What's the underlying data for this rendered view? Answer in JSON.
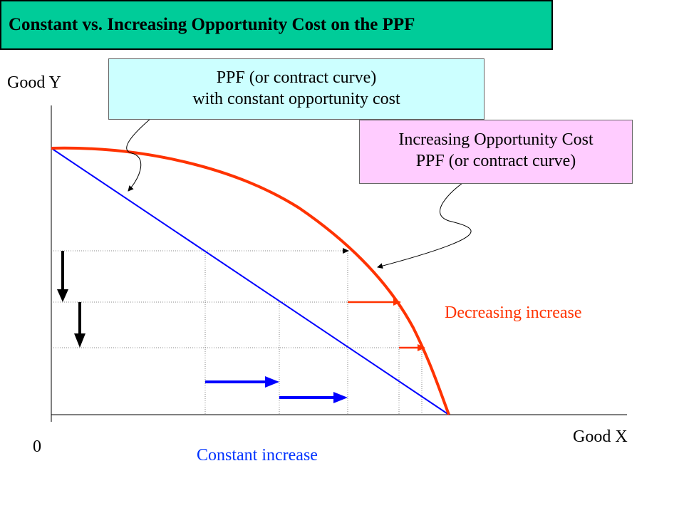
{
  "title": "Constant vs. Increasing Opportunity Cost on the PPF",
  "axes": {
    "y_label": "Good Y",
    "x_label": "Good X",
    "origin_label": "0"
  },
  "callouts": {
    "constant": {
      "line1": "PPF (or contract curve)",
      "line2": "with constant opportunity cost",
      "fill": "#ccffff"
    },
    "increasing": {
      "line1": "Increasing Opportunity Cost",
      "line2": "PPF (or contract curve)",
      "fill": "#ffccff"
    }
  },
  "annotations": {
    "decreasing": "Decreasing increase",
    "constant": "Constant increase"
  },
  "colors": {
    "title_bg": "#00cc99",
    "constant_line": "#0000ff",
    "increasing_curve": "#ff3300",
    "constant_text": "#0033ff",
    "decreasing_text": "#ff3300",
    "black_arrow": "#000000"
  }
}
